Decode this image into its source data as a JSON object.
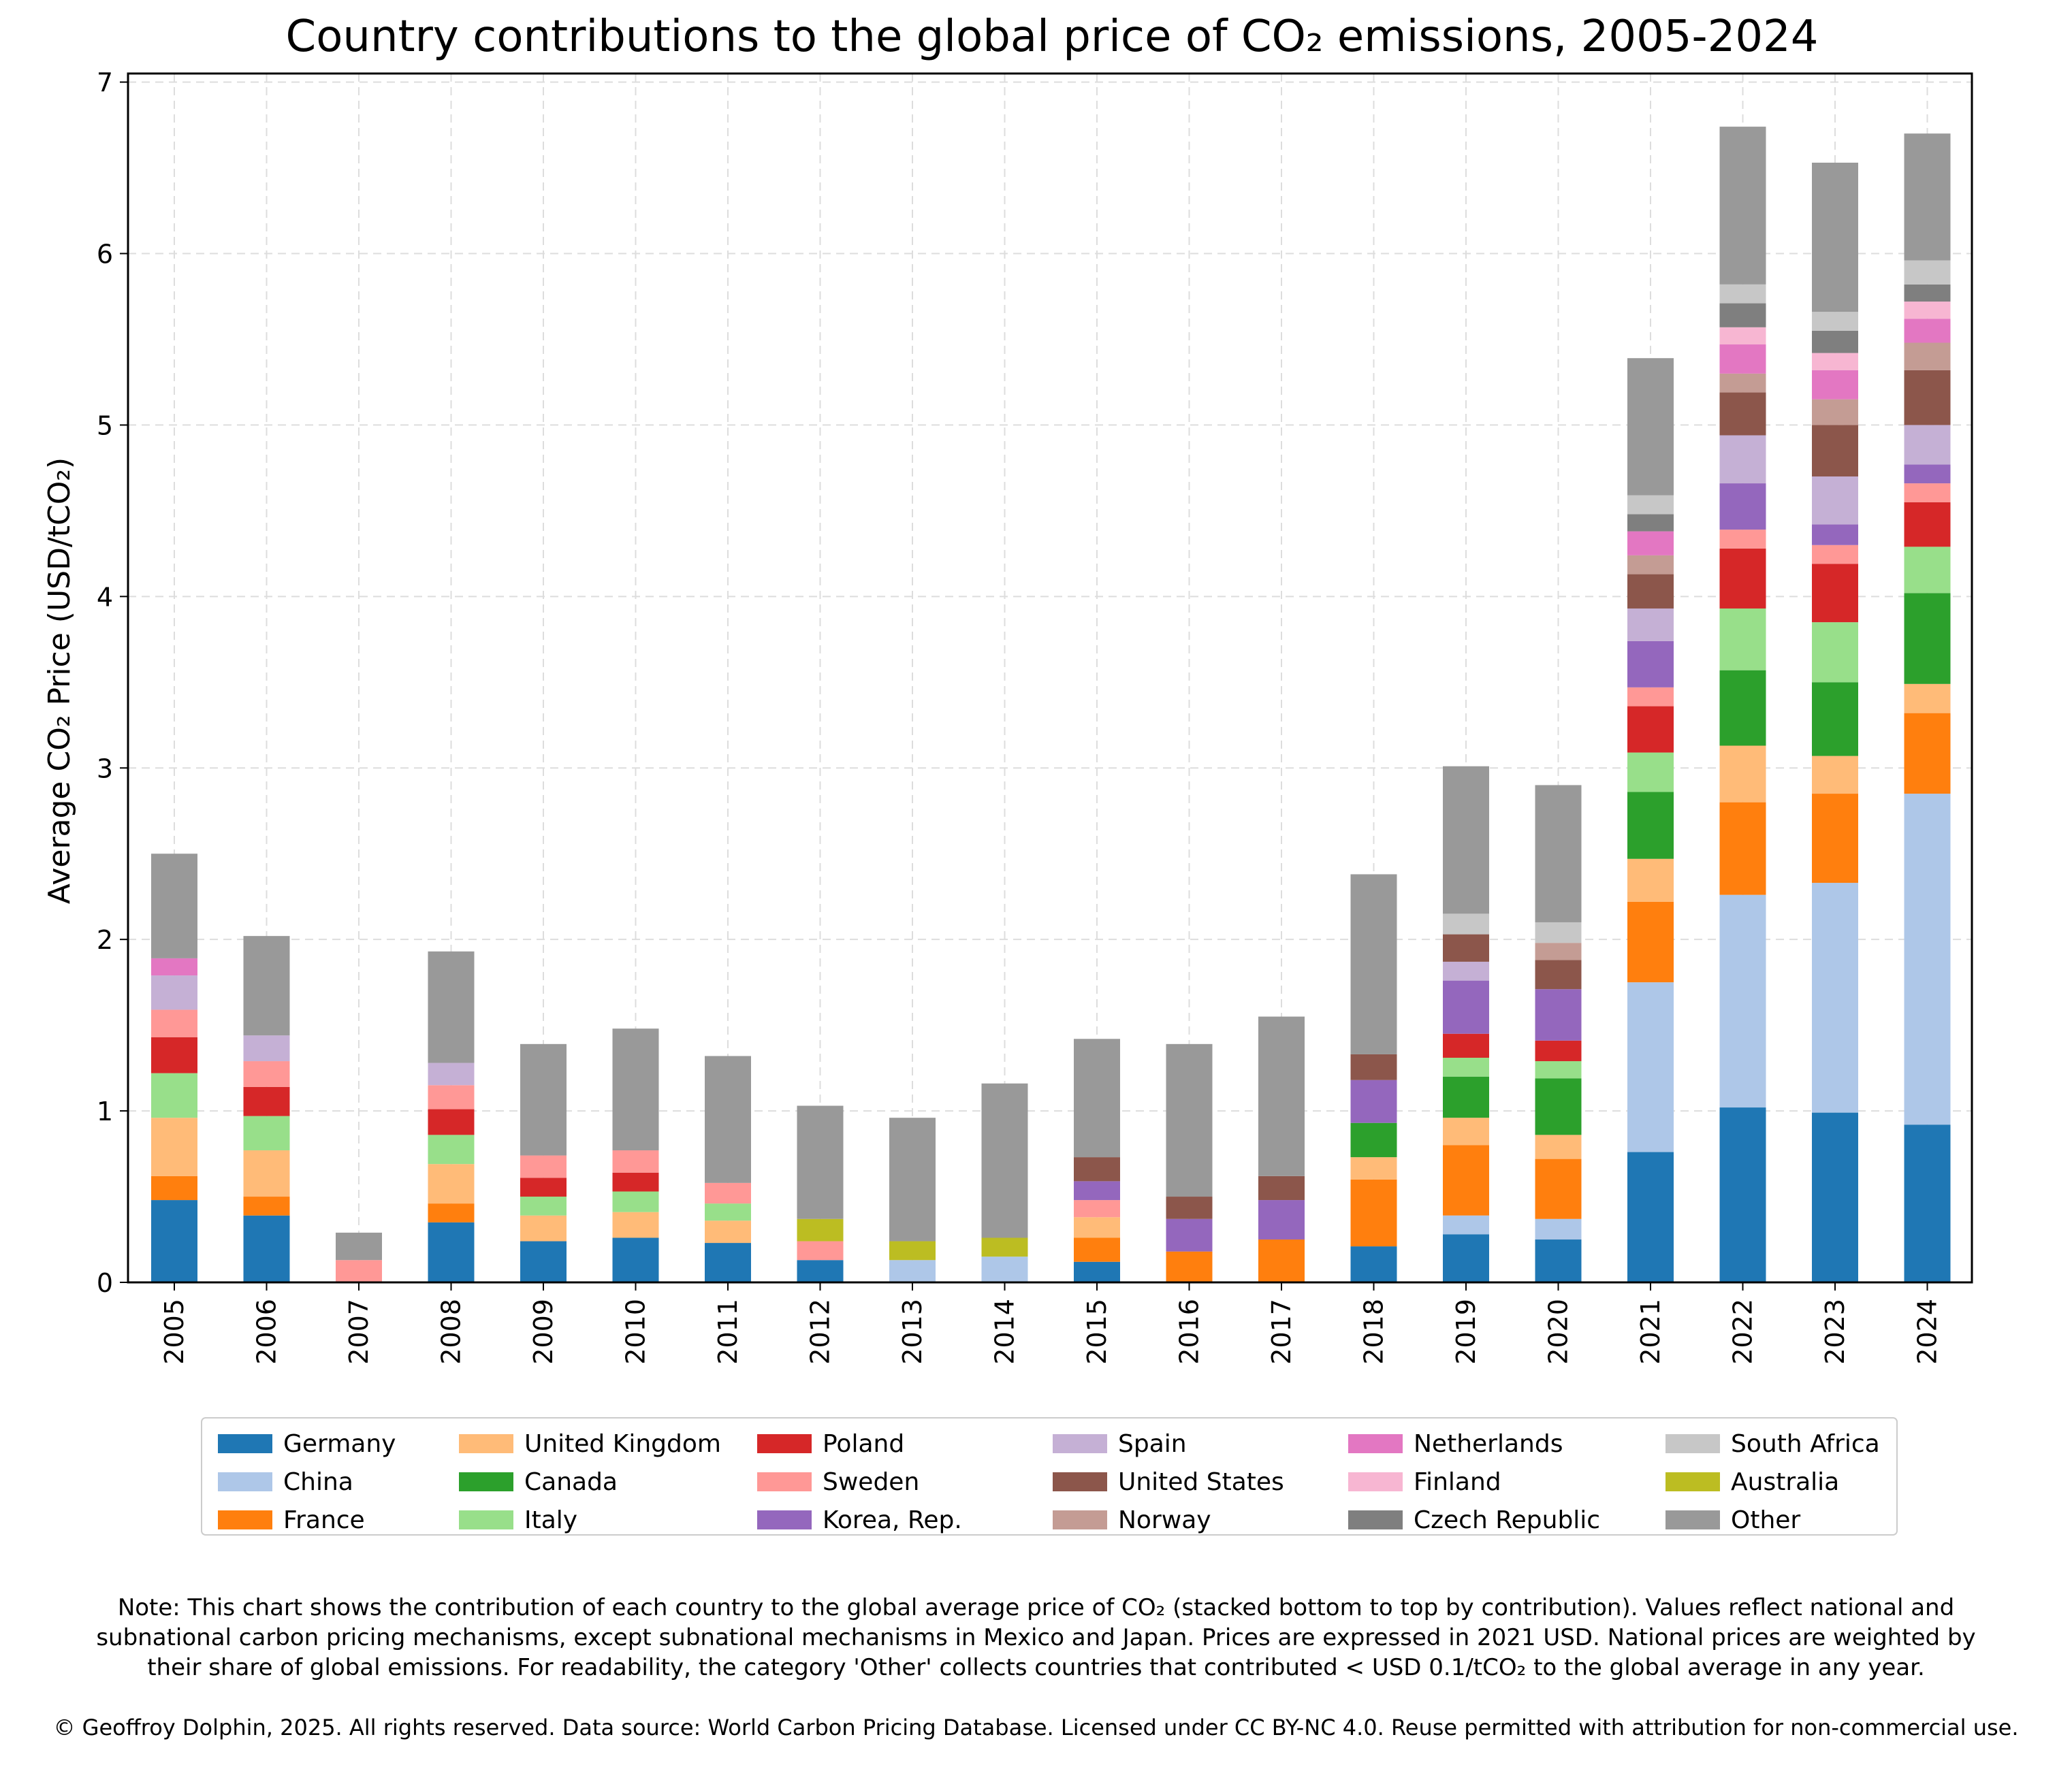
{
  "note": {
    "line1": "Note: This chart shows the contribution of each country to the global average price of CO₂ (stacked bottom to top by contribution). Values reflect national and",
    "line2": "subnational carbon pricing mechanisms, except subnational mechanisms in Mexico and Japan. Prices are expressed in 2021 USD. National prices are weighted by",
    "line3": "their share of global emissions. For readability, the category 'Other' collects countries that contributed < USD 0.1/tCO₂ to the global average in any year."
  },
  "copyright": "© Geoffroy Dolphin, 2025. All rights reserved. Data source: World Carbon Pricing Database. Licensed under CC BY-NC 4.0. Reuse permitted with attribution for non-commercial use.",
  "chart_data": {
    "type": "bar",
    "stacked": true,
    "title": "Country contributions to the global price of CO₂ emissions, 2005-2024",
    "xlabel": "",
    "ylabel": "Average CO₂ Price (USD/tCO₂)",
    "ylim": [
      0,
      7.05
    ],
    "yticks": [
      0,
      1,
      2,
      3,
      4,
      5,
      6,
      7
    ],
    "grid": true,
    "legend_position": "bottom",
    "categories": [
      "2005",
      "2006",
      "2007",
      "2008",
      "2009",
      "2010",
      "2011",
      "2012",
      "2013",
      "2014",
      "2015",
      "2016",
      "2017",
      "2018",
      "2019",
      "2020",
      "2021",
      "2022",
      "2023",
      "2024"
    ],
    "series": [
      {
        "name": "Germany",
        "color": "#1f77b4",
        "values": [
          0.48,
          0.39,
          0,
          0.35,
          0.24,
          0.26,
          0.23,
          0.13,
          0,
          0,
          0.12,
          0,
          0,
          0.21,
          0.28,
          0.25,
          0.76,
          1.02,
          0.99,
          0.92
        ]
      },
      {
        "name": "China",
        "color": "#aec7e8",
        "values": [
          0,
          0,
          0,
          0,
          0,
          0,
          0,
          0,
          0.13,
          0.15,
          0,
          0,
          0,
          0,
          0.11,
          0.12,
          0.99,
          1.24,
          1.34,
          1.93
        ]
      },
      {
        "name": "France",
        "color": "#ff7f0e",
        "values": [
          0.14,
          0.11,
          0,
          0.11,
          0,
          0,
          0,
          0,
          0,
          0,
          0.14,
          0.18,
          0.25,
          0.39,
          0.41,
          0.35,
          0.47,
          0.54,
          0.52,
          0.47
        ]
      },
      {
        "name": "United Kingdom",
        "color": "#ffbb78",
        "values": [
          0.34,
          0.27,
          0,
          0.23,
          0.15,
          0.15,
          0.13,
          0,
          0,
          0,
          0.12,
          0,
          0,
          0.13,
          0.16,
          0.14,
          0.25,
          0.33,
          0.22,
          0.17
        ]
      },
      {
        "name": "Canada",
        "color": "#2ca02c",
        "values": [
          0,
          0,
          0,
          0,
          0,
          0,
          0,
          0,
          0,
          0,
          0,
          0,
          0,
          0.2,
          0.24,
          0.33,
          0.39,
          0.44,
          0.43,
          0.53
        ]
      },
      {
        "name": "Italy",
        "color": "#98df8a",
        "values": [
          0.26,
          0.2,
          0,
          0.17,
          0.11,
          0.12,
          0.1,
          0,
          0,
          0,
          0,
          0,
          0,
          0,
          0.11,
          0.1,
          0.23,
          0.36,
          0.35,
          0.27
        ]
      },
      {
        "name": "Poland",
        "color": "#d62728",
        "values": [
          0.21,
          0.17,
          0,
          0.15,
          0.11,
          0.11,
          0,
          0,
          0,
          0,
          0,
          0,
          0,
          0,
          0.14,
          0.12,
          0.27,
          0.35,
          0.34,
          0.26
        ]
      },
      {
        "name": "Sweden",
        "color": "#ff9896",
        "values": [
          0.16,
          0.15,
          0.13,
          0.14,
          0.13,
          0.13,
          0.12,
          0.11,
          0,
          0,
          0.1,
          0,
          0,
          0,
          0,
          0,
          0.11,
          0.11,
          0.11,
          0.11
        ]
      },
      {
        "name": "Korea, Rep.",
        "color": "#9467bd",
        "values": [
          0,
          0,
          0,
          0,
          0,
          0,
          0,
          0,
          0,
          0,
          0.11,
          0.19,
          0.23,
          0.25,
          0.31,
          0.3,
          0.27,
          0.27,
          0.12,
          0.11
        ]
      },
      {
        "name": "Spain",
        "color": "#c5b0d5",
        "values": [
          0.2,
          0.15,
          0,
          0.13,
          0,
          0,
          0,
          0,
          0,
          0,
          0,
          0,
          0,
          0,
          0.11,
          0,
          0.19,
          0.28,
          0.28,
          0.23
        ]
      },
      {
        "name": "United States",
        "color": "#8c564b",
        "values": [
          0,
          0,
          0,
          0,
          0,
          0,
          0,
          0,
          0,
          0,
          0.14,
          0.13,
          0.14,
          0.15,
          0.16,
          0.17,
          0.2,
          0.25,
          0.3,
          0.32
        ]
      },
      {
        "name": "Norway",
        "color": "#c49c94",
        "values": [
          0,
          0,
          0,
          0,
          0,
          0,
          0,
          0,
          0,
          0,
          0,
          0,
          0,
          0,
          0,
          0.1,
          0.11,
          0.11,
          0.15,
          0.16
        ]
      },
      {
        "name": "Netherlands",
        "color": "#e377c2",
        "values": [
          0.1,
          0,
          0,
          0,
          0,
          0,
          0,
          0,
          0,
          0,
          0,
          0,
          0,
          0,
          0,
          0,
          0.14,
          0.17,
          0.17,
          0.14
        ]
      },
      {
        "name": "Finland",
        "color": "#f7b6d2",
        "values": [
          0,
          0,
          0,
          0,
          0,
          0,
          0,
          0,
          0,
          0,
          0,
          0,
          0,
          0,
          0,
          0,
          0,
          0.1,
          0.1,
          0.1
        ]
      },
      {
        "name": "Czech Republic",
        "color": "#7f7f7f",
        "values": [
          0,
          0,
          0,
          0,
          0,
          0,
          0,
          0,
          0,
          0,
          0,
          0,
          0,
          0,
          0,
          0,
          0.1,
          0.14,
          0.13,
          0.1
        ]
      },
      {
        "name": "South Africa",
        "color": "#c7c7c7",
        "values": [
          0,
          0,
          0,
          0,
          0,
          0,
          0,
          0,
          0,
          0,
          0,
          0,
          0,
          0,
          0.12,
          0.12,
          0.11,
          0.11,
          0.11,
          0.14
        ]
      },
      {
        "name": "Australia",
        "color": "#bcbd22",
        "values": [
          0,
          0,
          0,
          0,
          0,
          0,
          0,
          0.13,
          0.11,
          0.11,
          0,
          0,
          0,
          0,
          0,
          0,
          0,
          0,
          0,
          0
        ]
      },
      {
        "name": "Other",
        "color": "#999999",
        "values": [
          0.61,
          0.58,
          0.16,
          0.65,
          0.65,
          0.71,
          0.74,
          0.66,
          0.72,
          0.9,
          0.69,
          0.89,
          0.93,
          1.05,
          0.86,
          0.8,
          0.8,
          0.92,
          0.87,
          0.74
        ]
      }
    ]
  }
}
